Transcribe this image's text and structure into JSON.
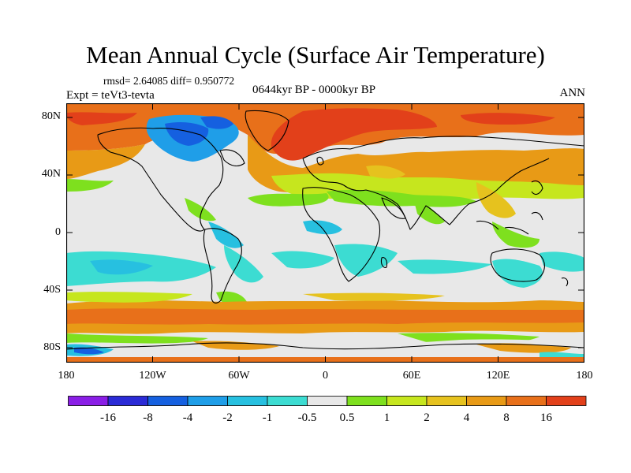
{
  "header": {
    "title": "Mean Annual Cycle (Surface Air Temperature)",
    "stats": "rmsd= 2.64085 diff= 0.950772",
    "experiment": "Expt = teVt3-tevta",
    "period": "0644kyr BP - 0000kyr BP",
    "season": "ANN"
  },
  "axes": {
    "y_ticks": [
      {
        "label": "80N",
        "lat": 80
      },
      {
        "label": "40N",
        "lat": 40
      },
      {
        "label": "0",
        "lat": 0
      },
      {
        "label": "40S",
        "lat": -40
      },
      {
        "label": "80S",
        "lat": -80
      }
    ],
    "x_ticks": [
      {
        "label": "180",
        "lon": -180
      },
      {
        "label": "120W",
        "lon": -120
      },
      {
        "label": "60W",
        "lon": -60
      },
      {
        "label": "0",
        "lon": 0
      },
      {
        "label": "60E",
        "lon": 60
      },
      {
        "label": "120E",
        "lon": 120
      },
      {
        "label": "180",
        "lon": 180
      }
    ],
    "lon_range": [
      -180,
      180
    ],
    "lat_range": [
      -90,
      90
    ]
  },
  "colorbar": {
    "colors": [
      "#8a1ee6",
      "#2b2bd6",
      "#1560e0",
      "#1f9ee8",
      "#27c0e0",
      "#3cdcd2",
      "#e8e8e8",
      "#7ee01e",
      "#c6e61e",
      "#e6c21e",
      "#e89a16",
      "#e8701a",
      "#e2401a"
    ],
    "labels": [
      "-16",
      "-8",
      "-4",
      "-2",
      "-1",
      "-0.5",
      "0.5",
      "1",
      "2",
      "4",
      "8",
      "16"
    ]
  }
}
